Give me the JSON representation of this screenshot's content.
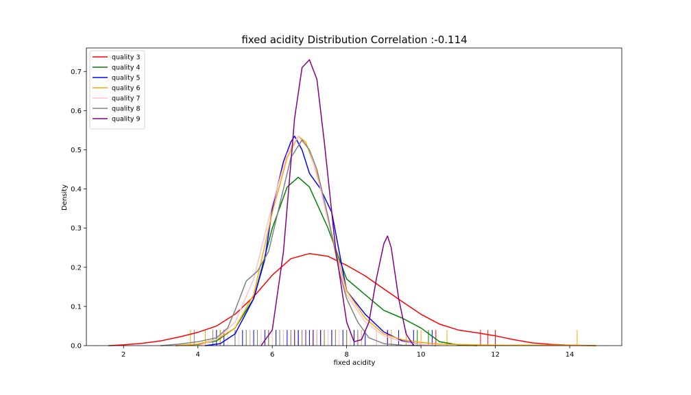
{
  "chart_data": {
    "type": "line",
    "title": "fixed acidity Distribution Correlation :-0.114",
    "xlabel": "fixed acidity",
    "ylabel": "Density",
    "xlim": [
      1.0,
      15.4
    ],
    "ylim": [
      0,
      0.76
    ],
    "xticks": [
      2,
      4,
      6,
      8,
      10,
      12,
      14
    ],
    "yticks": [
      0.0,
      0.1,
      0.2,
      0.3,
      0.4,
      0.5,
      0.6,
      0.7
    ],
    "xtick_labels": [
      "2",
      "4",
      "6",
      "8",
      "10",
      "12",
      "14"
    ],
    "ytick_labels": [
      "0.0",
      "0.1",
      "0.2",
      "0.3",
      "0.4",
      "0.5",
      "0.6",
      "0.7"
    ],
    "grid": false,
    "legend_position": "top-left",
    "series": [
      {
        "name": "quality 3",
        "color": "#ff0000",
        "x": [
          1.6,
          2.0,
          2.5,
          3.0,
          3.5,
          4.0,
          4.5,
          5.0,
          5.5,
          6.0,
          6.5,
          7.0,
          7.5,
          8.0,
          8.5,
          9.0,
          9.5,
          10.0,
          10.5,
          11.0,
          11.5,
          12.0,
          12.5,
          13.0,
          13.5,
          14.0,
          14.7
        ],
        "y": [
          0.0,
          0.002,
          0.006,
          0.012,
          0.022,
          0.034,
          0.05,
          0.08,
          0.125,
          0.18,
          0.222,
          0.235,
          0.228,
          0.205,
          0.178,
          0.145,
          0.112,
          0.08,
          0.055,
          0.04,
          0.033,
          0.025,
          0.015,
          0.007,
          0.003,
          0.001,
          0.0
        ]
      },
      {
        "name": "quality 4",
        "color": "#008000",
        "x": [
          3.4,
          4.0,
          4.5,
          5.0,
          5.5,
          6.0,
          6.4,
          6.7,
          7.0,
          7.5,
          8.0,
          8.5,
          9.0,
          9.5,
          10.0,
          10.5,
          11.0,
          11.5
        ],
        "y": [
          0.0,
          0.003,
          0.012,
          0.045,
          0.12,
          0.3,
          0.405,
          0.43,
          0.405,
          0.3,
          0.17,
          0.13,
          0.09,
          0.07,
          0.045,
          0.01,
          0.002,
          0.0
        ]
      },
      {
        "name": "quality 5",
        "color": "#0000ff",
        "x": [
          4.2,
          4.6,
          5.0,
          5.5,
          5.8,
          6.0,
          6.3,
          6.5,
          6.6,
          6.8,
          7.0,
          7.3,
          7.6,
          7.8,
          8.0,
          8.5,
          9.0,
          9.5,
          10.0,
          10.4
        ],
        "y": [
          0.0,
          0.005,
          0.03,
          0.12,
          0.22,
          0.35,
          0.47,
          0.52,
          0.535,
          0.5,
          0.44,
          0.4,
          0.34,
          0.24,
          0.14,
          0.08,
          0.035,
          0.012,
          0.003,
          0.0
        ]
      },
      {
        "name": "quality 6",
        "color": "#ffa500",
        "x": [
          3.4,
          4.0,
          4.5,
          5.0,
          5.5,
          6.0,
          6.4,
          6.7,
          6.9,
          7.2,
          7.5,
          8.0,
          8.5,
          9.0,
          9.5,
          10.0,
          10.5,
          11.0,
          11.5,
          12.0,
          12.5,
          13.0,
          13.5,
          14.0,
          14.5,
          14.7
        ],
        "y": [
          0.0,
          0.004,
          0.015,
          0.045,
          0.13,
          0.34,
          0.48,
          0.535,
          0.52,
          0.44,
          0.32,
          0.14,
          0.07,
          0.03,
          0.015,
          0.008,
          0.004,
          0.003,
          0.002,
          0.001,
          0.001,
          0.001,
          0.001,
          0.001,
          0.0,
          0.0
        ]
      },
      {
        "name": "quality 7",
        "color": "#ffc0cb",
        "x": [
          4.0,
          4.5,
          5.0,
          5.5,
          6.0,
          6.4,
          6.7,
          7.0,
          7.3,
          7.6,
          8.0,
          8.5,
          9.0,
          9.5,
          10.0,
          10.5
        ],
        "y": [
          0.0,
          0.015,
          0.06,
          0.17,
          0.36,
          0.49,
          0.535,
          0.5,
          0.4,
          0.28,
          0.13,
          0.06,
          0.025,
          0.01,
          0.003,
          0.0
        ]
      },
      {
        "name": "quality 8",
        "color": "#808080",
        "x": [
          3.0,
          3.5,
          4.0,
          4.5,
          4.8,
          5.0,
          5.3,
          5.6,
          5.9,
          6.2,
          6.5,
          6.8,
          7.0,
          7.2,
          7.5,
          7.8,
          8.0,
          8.3,
          8.6,
          9.0,
          9.5,
          10.0
        ],
        "y": [
          0.0,
          0.004,
          0.01,
          0.02,
          0.045,
          0.09,
          0.165,
          0.19,
          0.24,
          0.36,
          0.48,
          0.525,
          0.5,
          0.45,
          0.33,
          0.19,
          0.12,
          0.06,
          0.02,
          0.005,
          0.001,
          0.0
        ]
      },
      {
        "name": "quality 9",
        "color": "#800080",
        "x": [
          5.7,
          6.0,
          6.3,
          6.6,
          6.8,
          7.0,
          7.2,
          7.4,
          7.7,
          8.0,
          8.2,
          8.4,
          8.6,
          8.8,
          9.0,
          9.1,
          9.2,
          9.4,
          9.6,
          9.8
        ],
        "y": [
          0.0,
          0.04,
          0.24,
          0.58,
          0.71,
          0.73,
          0.68,
          0.52,
          0.25,
          0.06,
          0.01,
          0.015,
          0.06,
          0.17,
          0.26,
          0.28,
          0.25,
          0.12,
          0.03,
          0.0
        ]
      }
    ],
    "rug": [
      {
        "series": "quality 3",
        "color": "#ff0000",
        "values": [
          6.7,
          7.1,
          7.3,
          7.6,
          8.3,
          10.4,
          11.6,
          11.8,
          12.0
        ]
      },
      {
        "series": "quality 4",
        "color": "#008000",
        "values": [
          4.6,
          5.0,
          5.4,
          5.9,
          6.3,
          6.6,
          6.9,
          7.2,
          7.6,
          8.0,
          8.4,
          8.8,
          9.2,
          9.9,
          10.2
        ]
      },
      {
        "series": "quality 5",
        "color": "#0000ff",
        "values": [
          4.5,
          4.7,
          5.0,
          5.2,
          5.5,
          5.8,
          6.1,
          6.4,
          6.7,
          7.0,
          7.3,
          7.6,
          7.9,
          8.2,
          8.5,
          8.8,
          9.1,
          9.4,
          9.8,
          10.3
        ]
      },
      {
        "series": "quality 6",
        "color": "#ffa500",
        "values": [
          3.8,
          4.2,
          4.6,
          5.0,
          5.3,
          5.6,
          5.9,
          6.2,
          6.5,
          6.8,
          7.1,
          7.4,
          7.7,
          8.0,
          8.4,
          8.8,
          9.2,
          9.6,
          10.0,
          10.7,
          14.2
        ]
      },
      {
        "series": "quality 7",
        "color": "#ffc0cb",
        "values": [
          4.8,
          5.1,
          5.4,
          5.7,
          6.0,
          6.3,
          6.6,
          6.9,
          7.2,
          7.5,
          7.8,
          8.1,
          8.4,
          8.8,
          9.2
        ]
      },
      {
        "series": "quality 8",
        "color": "#808080",
        "values": [
          3.9,
          4.4,
          5.0,
          5.3,
          5.6,
          5.9,
          6.2,
          6.5,
          6.8,
          7.1,
          7.4,
          7.7,
          8.0,
          8.3
        ]
      },
      {
        "series": "quality 9",
        "color": "#800080",
        "values": [
          6.6,
          6.9,
          7.1,
          9.1
        ]
      }
    ]
  }
}
